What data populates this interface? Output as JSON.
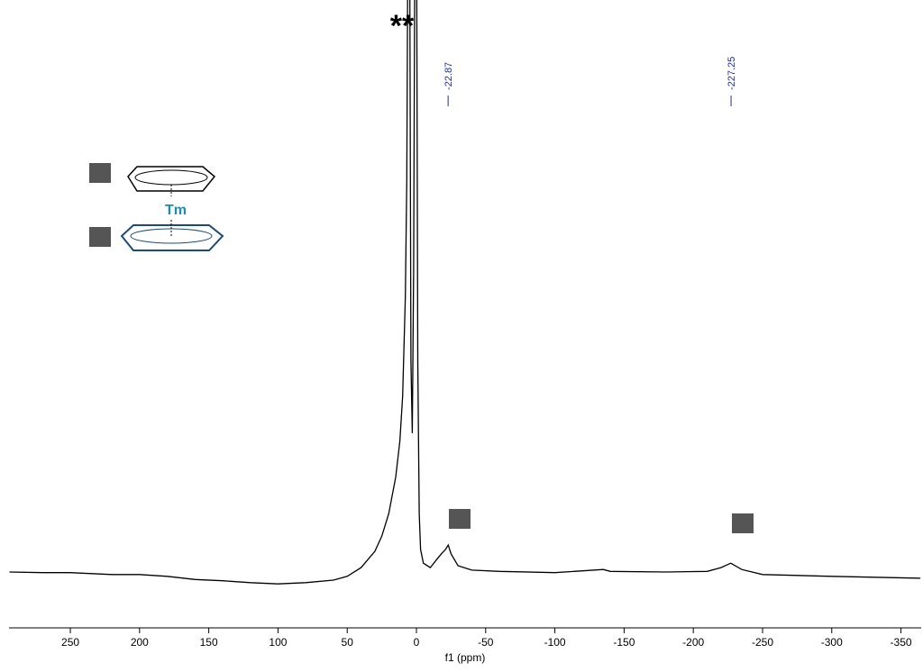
{
  "chart_data": {
    "type": "line",
    "x_label": "f1 (ppm)",
    "annotation": "**",
    "structure_label": "Tm",
    "xlim": [
      294.3,
      -364.6
    ],
    "xticks": [
      250,
      200,
      150,
      100,
      50,
      0,
      -50,
      -100,
      -150,
      -200,
      -250,
      -300,
      -350
    ],
    "ylim": [
      0,
      100
    ],
    "peak_labels": [
      -22.87,
      -227.25
    ],
    "peak_label_color": "#1f2f9a",
    "series": [
      {
        "color": "#000000",
        "x": [
          294,
          270,
          250,
          220,
          200,
          180,
          160,
          140,
          120,
          100,
          80,
          60,
          50,
          40,
          30,
          25,
          20,
          15,
          12,
          10,
          8,
          7,
          6,
          5,
          4,
          3,
          2,
          1,
          0,
          -1,
          -2,
          -3,
          -5,
          -10,
          -15,
          -18,
          -21,
          -23,
          -25,
          -30,
          -40,
          -60,
          -100,
          -135,
          -140,
          -180,
          -210,
          -220,
          -227,
          -235,
          -250,
          -300,
          -364
        ],
        "values": [
          8.9,
          8.8,
          8.8,
          8.5,
          8.5,
          8.2,
          7.7,
          7.5,
          7.2,
          7.0,
          7.2,
          7.6,
          8.2,
          9.6,
          12.2,
          14.6,
          18.2,
          24.0,
          29.7,
          36.9,
          52.7,
          71.3,
          120,
          120,
          42.5,
          31.0,
          57.0,
          120,
          120,
          42.5,
          18.2,
          12.5,
          10.3,
          9.6,
          11.0,
          11.8,
          12.5,
          13.2,
          11.8,
          9.9,
          9.2,
          9.0,
          8.8,
          9.3,
          9.0,
          8.9,
          9.0,
          9.6,
          10.3,
          9.3,
          8.5,
          8.2,
          7.9
        ]
      }
    ]
  }
}
